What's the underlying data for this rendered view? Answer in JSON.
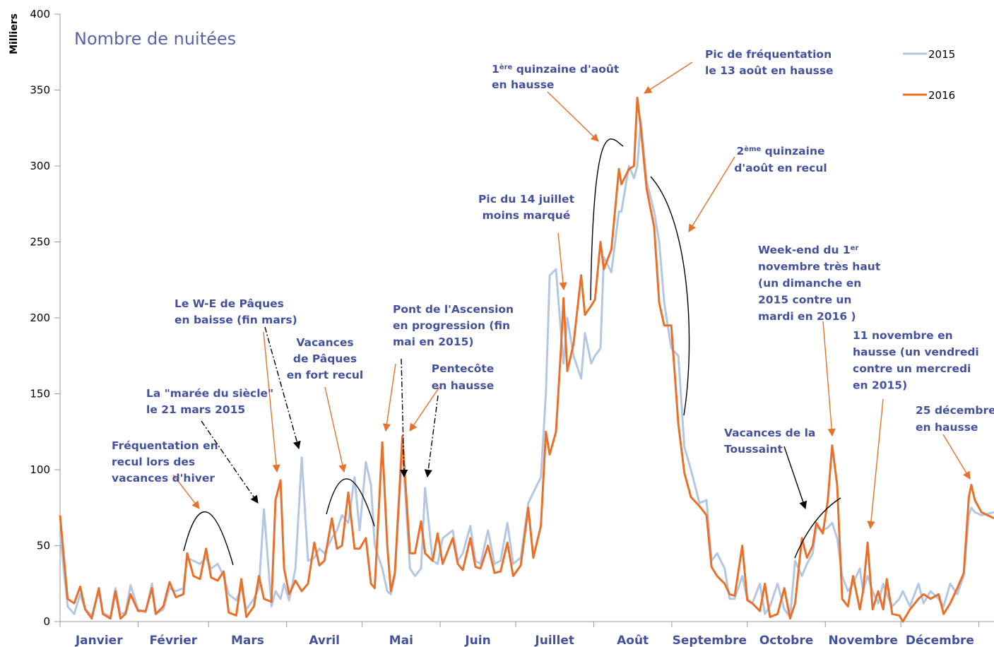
{
  "chart_data": {
    "type": "line",
    "title": "Nombre de nuitées",
    "y_label": "Milliers",
    "months": [
      "Janvier",
      "Février",
      "Mars",
      "Avril",
      "Mai",
      "Juin",
      "Juillet",
      "Août",
      "Septembre",
      "Octobre",
      "Novembre",
      "Décembre"
    ],
    "xticks": [
      0,
      31,
      59,
      90,
      120,
      151,
      181,
      212,
      243,
      273,
      304,
      334,
      365
    ],
    "xlim": [
      0,
      371
    ],
    "ylim": [
      0,
      400
    ],
    "yticks": [
      0,
      50,
      100,
      150,
      200,
      250,
      300,
      350,
      400
    ],
    "legend": "top-right",
    "x": [
      0,
      3,
      5.6,
      8,
      10,
      12.6,
      15.4,
      17,
      20,
      22,
      24,
      26,
      28,
      31,
      34,
      36.5,
      38,
      41,
      43.5,
      46,
      49,
      50.5,
      53,
      55.6,
      58,
      60,
      62.6,
      65,
      67,
      70,
      72,
      74,
      77,
      79,
      81,
      84,
      85.6,
      87.6,
      89,
      91,
      93.5,
      96,
      98.5,
      101,
      103,
      105,
      108,
      110,
      112,
      114.5,
      117,
      119,
      121.5,
      123.5,
      125,
      128,
      130,
      131.4,
      133,
      136,
      139,
      141,
      143.4,
      145,
      148,
      150,
      152,
      156,
      158,
      160,
      163,
      165,
      167,
      170,
      172.6,
      175,
      177.7,
      180,
      183,
      186,
      188,
      191,
      193,
      194.5,
      197,
      199,
      200,
      201.5,
      204,
      207,
      208.5,
      211,
      212.5,
      214.7,
      216,
      219,
      222,
      223,
      226,
      228,
      229.3,
      230.7,
      233,
      236,
      238,
      240,
      242.8,
      245.6,
      248,
      250.6,
      254,
      256.8,
      258.8,
      261,
      264,
      266,
      268,
      271,
      273,
      275,
      278,
      280,
      282,
      285,
      287.7,
      290,
      292,
      294.7,
      296.7,
      299,
      300.4,
      303,
      305,
      306.7,
      308.7,
      310.7,
      313,
      315,
      317.7,
      319,
      320.8,
      322.8,
      325,
      327,
      328.4,
      330.6,
      333.4,
      334.8,
      337.6,
      341,
      343,
      345.8,
      349,
      351,
      353.6,
      356.4,
      359,
      361,
      362,
      363.4,
      366,
      371
    ],
    "series": [
      {
        "name": "2015",
        "color": "#b4c7e2",
        "values": [
          58,
          10,
          5,
          18,
          8,
          4,
          20,
          6,
          3,
          22,
          5,
          6,
          24,
          8,
          6,
          25,
          5,
          8,
          22,
          20,
          22,
          42,
          40,
          38,
          42,
          35,
          38,
          30,
          18,
          14,
          22,
          8,
          15,
          22,
          74,
          10,
          20,
          15,
          25,
          14,
          35,
          108,
          40,
          42,
          48,
          45,
          55,
          60,
          70,
          65,
          95,
          60,
          105,
          90,
          50,
          35,
          20,
          18,
          30,
          115,
          35,
          30,
          35,
          88,
          40,
          38,
          55,
          60,
          40,
          45,
          63,
          40,
          38,
          60,
          38,
          40,
          65,
          38,
          42,
          78,
          85,
          95,
          150,
          228,
          232,
          190,
          170,
          200,
          175,
          160,
          190,
          170,
          175,
          180,
          240,
          230,
          270,
          270,
          300,
          292,
          300,
          330,
          290,
          270,
          250,
          210,
          180,
          175,
          115,
          100,
          78,
          80,
          40,
          45,
          35,
          15,
          15,
          30,
          15,
          12,
          25,
          5,
          10,
          25,
          8,
          3,
          40,
          30,
          38,
          45,
          62,
          60,
          62,
          65,
          55,
          30,
          20,
          25,
          35,
          20,
          30,
          20,
          12,
          25,
          18,
          10,
          15,
          20,
          10,
          25,
          12,
          20,
          15,
          10,
          25,
          18,
          30,
          70,
          75,
          72,
          70,
          72
        ]
      },
      {
        "name": "2016",
        "color": "#e8702a",
        "values": [
          70,
          15,
          12,
          23,
          8,
          2,
          22,
          5,
          2,
          20,
          2,
          5,
          18,
          7,
          7,
          22,
          5,
          10,
          26,
          16,
          18,
          45,
          30,
          28,
          48,
          29,
          27,
          33,
          6,
          4,
          28,
          3,
          10,
          30,
          15,
          13,
          80,
          93,
          35,
          18,
          27,
          20,
          25,
          52,
          37,
          40,
          68,
          48,
          50,
          85,
          48,
          48,
          55,
          25,
          22,
          118,
          50,
          20,
          32,
          122,
          45,
          45,
          66,
          45,
          40,
          58,
          38,
          55,
          38,
          34,
          55,
          36,
          35,
          50,
          32,
          33,
          52,
          30,
          37,
          75,
          42,
          63,
          125,
          110,
          125,
          180,
          213,
          165,
          183,
          228,
          202,
          208,
          212,
          250,
          232,
          245,
          298,
          288,
          298,
          300,
          345,
          325,
          285,
          260,
          210,
          195,
          195,
          130,
          98,
          82,
          76,
          70,
          36,
          30,
          25,
          18,
          17,
          50,
          14,
          12,
          7,
          25,
          3,
          5,
          22,
          2,
          12,
          55,
          42,
          50,
          65,
          58,
          80,
          116,
          90,
          15,
          10,
          30,
          8,
          20,
          52,
          8,
          20,
          8,
          28,
          5,
          4,
          0,
          8,
          15,
          18,
          15,
          18,
          5,
          12,
          22,
          32,
          82,
          90,
          80,
          72,
          68
        ]
      }
    ],
    "annotations": [
      {
        "lines": [
          [
            "Fréquentation en"
          ],
          [
            "recul lors des"
          ],
          [
            "vacances d'hiver"
          ]
        ]
      },
      {
        "lines": [
          [
            "La  \"marée du siècle\""
          ],
          [
            "le 21 mars 2015"
          ]
        ]
      },
      {
        "lines": [
          [
            "Le W-E de Pâques"
          ],
          [
            "en baisse (fin mars)"
          ]
        ]
      },
      {
        "lines": [
          [
            "Vacances"
          ],
          [
            "de Pâques"
          ],
          [
            "en fort recul"
          ]
        ]
      },
      {
        "lines": [
          [
            "Pont de l'Ascension"
          ],
          [
            "en progression (fin"
          ],
          [
            "mai en 2015)"
          ]
        ]
      },
      {
        "lines": [
          [
            "Pentecôte"
          ],
          [
            "en hausse"
          ]
        ]
      },
      {
        "lines": [
          [
            "Pic du 14 juillet"
          ],
          [
            "moins marqué"
          ]
        ]
      },
      {
        "lines": [
          [
            "1",
            "ère",
            " quinzaine d'août"
          ],
          [
            "en hausse"
          ]
        ]
      },
      {
        "lines": [
          [
            "Pic de fréquentation"
          ],
          [
            "le 13 août en hausse"
          ]
        ]
      },
      {
        "lines": [
          [
            "2",
            "ème",
            " quinzaine"
          ],
          [
            "d'août en recul"
          ]
        ]
      },
      {
        "lines": [
          [
            "Week-end du 1",
            "er"
          ],
          [
            "novembre très haut"
          ],
          [
            "(un dimanche en"
          ],
          [
            "2015 contre un"
          ],
          [
            "mardi en 2016 )"
          ]
        ]
      },
      {
        "lines": [
          [
            "11 novembre en"
          ],
          [
            "hausse (un vendredi"
          ],
          [
            "contre un mercredi"
          ],
          [
            "en 2015)"
          ]
        ]
      },
      {
        "lines": [
          [
            "25 décembre"
          ],
          [
            "en hausse"
          ]
        ]
      },
      {
        "lines": [
          [
            "Vacances de la"
          ],
          [
            "Toussaint"
          ]
        ]
      }
    ]
  }
}
